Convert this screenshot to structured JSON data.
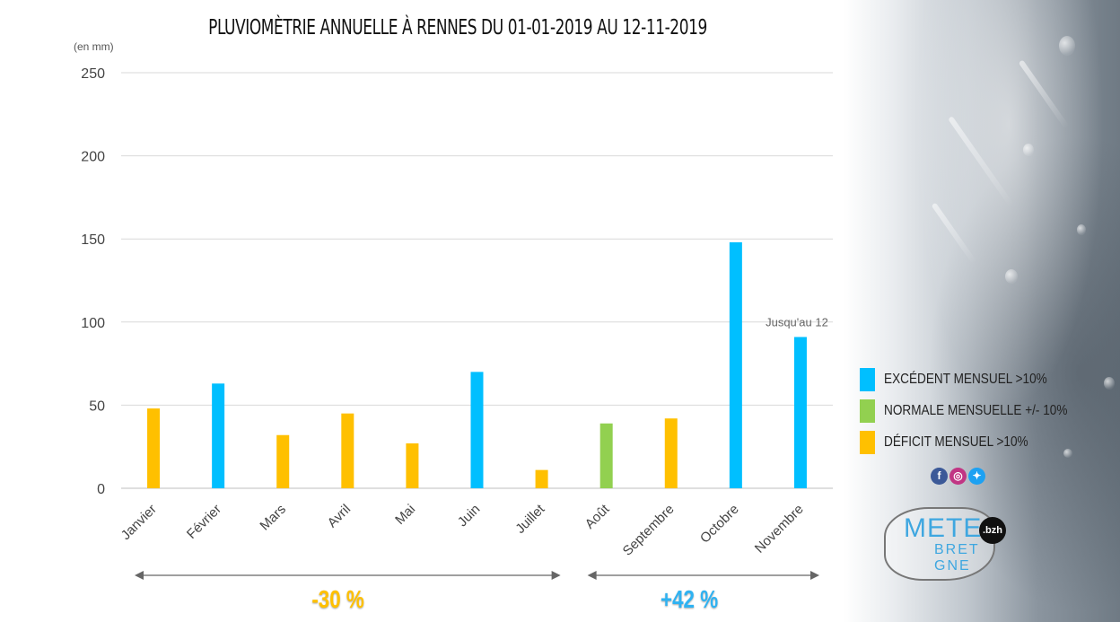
{
  "chart_data": {
    "type": "bar",
    "title": "PLUVIOMÈTRIE ANNUELLE À RENNES DU 01-01-2019 AU 12-11-2019",
    "ylabel": "(en mm)",
    "ylim": [
      0,
      250
    ],
    "yticks": [
      "0",
      "50",
      "100",
      "150",
      "200",
      "250"
    ],
    "categories": [
      "Janvier",
      "Février",
      "Mars",
      "Avril",
      "Mai",
      "Juin",
      "Juillet",
      "Août",
      "Septembre",
      "Octobre",
      "Novembre"
    ],
    "values": [
      48,
      63,
      32,
      45,
      27,
      70,
      11,
      39,
      42,
      148,
      91
    ],
    "status": [
      "deficit",
      "excedent",
      "deficit",
      "deficit",
      "deficit",
      "excedent",
      "deficit",
      "normale",
      "deficit",
      "excedent",
      "excedent"
    ],
    "annotation": "Jusqu'au 12",
    "grid": true,
    "legend_position": "right",
    "periods": [
      {
        "label": "-30 %",
        "from": "Janvier",
        "to": "Juillet",
        "color": "#ffc000"
      },
      {
        "label": "+42 %",
        "from": "Août",
        "to": "Novembre",
        "color": "#2eb2f2"
      }
    ]
  },
  "colors": {
    "excedent": "#00bfff",
    "normale": "#92d050",
    "deficit": "#ffc000",
    "grid": "#d9d9d9",
    "axis": "#bfbfbf"
  },
  "legend": [
    {
      "key": "excedent",
      "label": "EXCÉDENT MENSUEL >10%"
    },
    {
      "key": "normale",
      "label": "NORMALE MENSUELLE +/- 10%"
    },
    {
      "key": "deficit",
      "label": "DÉFICIT MENSUEL >10%"
    }
  ],
  "socials": [
    {
      "name": "facebook-icon",
      "glyph": "f",
      "color": "#3b5998"
    },
    {
      "name": "instagram-icon",
      "glyph": "◎",
      "color": "#c13584"
    },
    {
      "name": "twitter-icon",
      "glyph": "✦",
      "color": "#1da1f2"
    }
  ],
  "logo": {
    "text1": "METE",
    "text2": "BRET GNE",
    "badge": ".bzh"
  }
}
